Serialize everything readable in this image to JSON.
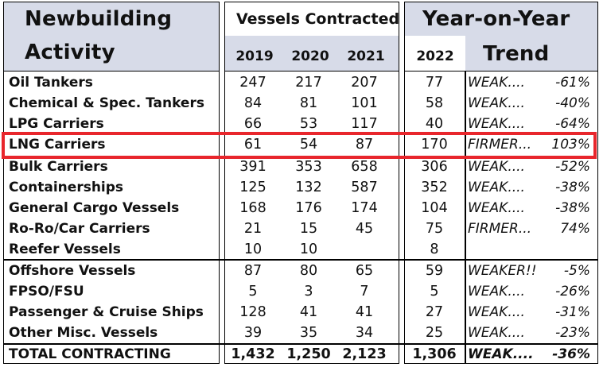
{
  "header": {
    "title_line1": "Newbuilding",
    "title_line2": "Activity",
    "contracted_title": "Vessels Contracted",
    "yoy_title": "Year-on-Year",
    "trend_label": "Trend",
    "years": [
      "2019",
      "2020",
      "2021"
    ],
    "current_year": "2022"
  },
  "rows": [
    {
      "name": "Oil Tankers",
      "y2019": "247",
      "y2020": "217",
      "y2021": "207",
      "y2022": "77",
      "trend": "WEAK....",
      "pct": "-61%"
    },
    {
      "name": "Chemical & Spec. Tankers",
      "y2019": "84",
      "y2020": "81",
      "y2021": "101",
      "y2022": "58",
      "trend": "WEAK....",
      "pct": "-40%"
    },
    {
      "name": "LPG Carriers",
      "y2019": "66",
      "y2020": "53",
      "y2021": "117",
      "y2022": "40",
      "trend": "WEAK....",
      "pct": "-64%"
    },
    {
      "name": "LNG Carriers",
      "y2019": "61",
      "y2020": "54",
      "y2021": "87",
      "y2022": "170",
      "trend": "FIRMER...",
      "pct": "103%"
    },
    {
      "name": "Bulk Carriers",
      "y2019": "391",
      "y2020": "353",
      "y2021": "658",
      "y2022": "306",
      "trend": "WEAK....",
      "pct": "-52%"
    },
    {
      "name": "Containerships",
      "y2019": "125",
      "y2020": "132",
      "y2021": "587",
      "y2022": "352",
      "trend": "WEAK....",
      "pct": "-38%"
    },
    {
      "name": "General Cargo Vessels",
      "y2019": "168",
      "y2020": "176",
      "y2021": "174",
      "y2022": "104",
      "trend": "WEAK....",
      "pct": "-38%"
    },
    {
      "name": "Ro-Ro/Car Carriers",
      "y2019": "21",
      "y2020": "15",
      "y2021": "45",
      "y2022": "75",
      "trend": "FIRMER...",
      "pct": "74%"
    },
    {
      "name": "Reefer Vessels",
      "y2019": "10",
      "y2020": "10",
      "y2021": "",
      "y2022": "8",
      "trend": "",
      "pct": ""
    },
    {
      "name": "Offshore Vessels",
      "y2019": "87",
      "y2020": "80",
      "y2021": "65",
      "y2022": "59",
      "trend": "WEAKER!!",
      "pct": "-5%"
    },
    {
      "name": "FPSO/FSU",
      "y2019": "5",
      "y2020": "3",
      "y2021": "7",
      "y2022": "5",
      "trend": "WEAK....",
      "pct": "-26%"
    },
    {
      "name": "Passenger & Cruise Ships",
      "y2019": "128",
      "y2020": "41",
      "y2021": "41",
      "y2022": "27",
      "trend": "WEAK....",
      "pct": "-31%"
    },
    {
      "name": "Other Misc. Vessels",
      "y2019": "39",
      "y2020": "35",
      "y2021": "34",
      "y2022": "25",
      "trend": "WEAK....",
      "pct": "-23%"
    }
  ],
  "total": {
    "name": "TOTAL CONTRACTING",
    "y2019": "1,432",
    "y2020": "1,250",
    "y2021": "2,123",
    "y2022": "1,306",
    "trend": "WEAK....",
    "pct": "-36%"
  },
  "colors": {
    "header_bg": "#d7dbe8",
    "highlight_border": "#e8262c"
  }
}
